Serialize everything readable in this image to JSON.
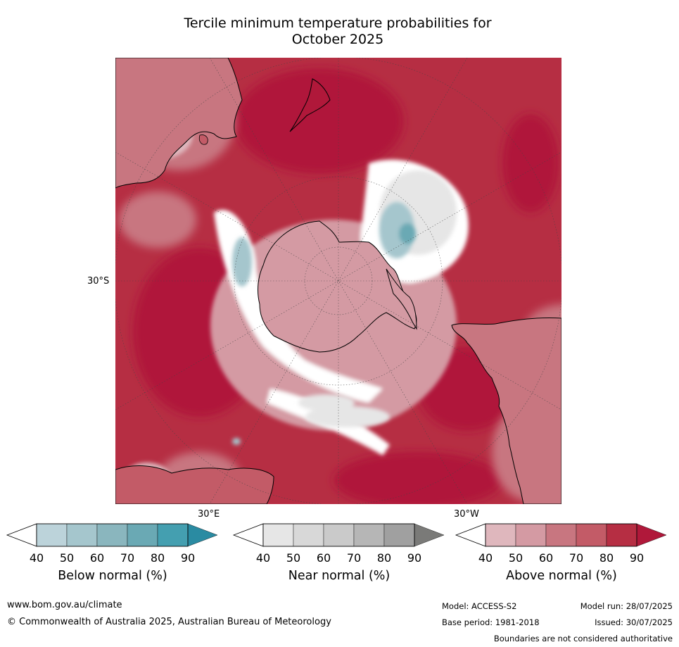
{
  "title": {
    "line1": "Tercile minimum temperature probabilities for",
    "line2": "October 2025"
  },
  "map": {
    "projection": "south-polar-stereographic",
    "grid_labels": {
      "left": "30°S",
      "bottom_left": "30°E",
      "bottom_right": "30°W"
    },
    "colors": {
      "above": [
        "#dfb7bd",
        "#d49aa3",
        "#c87680",
        "#c35b67",
        "#b62e43",
        "#b0183a"
      ],
      "below": [
        "#bcd3da",
        "#a5c6cd",
        "#8ab6be",
        "#6aa9b4",
        "#449fb0",
        "#2a8ba2"
      ],
      "near": [
        "#e6e6e6",
        "#d8d8d8",
        "#cacaca",
        "#b6b6b6",
        "#a0a0a0",
        "#7a7a78"
      ],
      "white": "#ffffff"
    }
  },
  "colorbars": [
    {
      "id": "below",
      "label": "Below normal (%)",
      "ticks": [
        "40",
        "50",
        "60",
        "70",
        "80",
        "90"
      ],
      "colors": [
        "#bcd3da",
        "#a5c6cd",
        "#8ab6be",
        "#6aa9b4",
        "#449fb0",
        "#2a8ba2"
      ]
    },
    {
      "id": "near",
      "label": "Near normal (%)",
      "ticks": [
        "40",
        "50",
        "60",
        "70",
        "80",
        "90"
      ],
      "colors": [
        "#e6e6e6",
        "#d8d8d8",
        "#cacaca",
        "#b6b6b6",
        "#a0a0a0",
        "#7a7a78"
      ]
    },
    {
      "id": "above",
      "label": "Above normal (%)",
      "ticks": [
        "40",
        "50",
        "60",
        "70",
        "80",
        "90"
      ],
      "colors": [
        "#dfb7bd",
        "#d49aa3",
        "#c87680",
        "#c35b67",
        "#b62e43",
        "#b0183a"
      ]
    }
  ],
  "footer": {
    "website": "www.bom.gov.au/climate",
    "copyright": "© Commonwealth of Australia 2025, Australian Bureau of Meteorology",
    "model": "Model: ACCESS-S2",
    "base_period": "Base period: 1981-2018",
    "model_run": "Model run: 28/07/2025",
    "issued": "Issued: 30/07/2025",
    "disclaimer": "Boundaries are not considered authoritative"
  }
}
